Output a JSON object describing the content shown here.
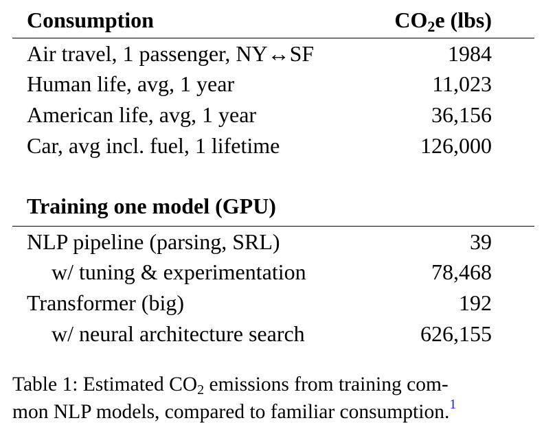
{
  "table": {
    "section1": {
      "header_label": "Consumption",
      "header_value_prefix": "CO",
      "header_value_sub": "2",
      "header_value_suffix": "e (lbs)",
      "rows": [
        {
          "label": "Air travel, 1 passenger, NY↔SF",
          "value": "1984",
          "indent": false
        },
        {
          "label": "Human life, avg, 1 year",
          "value": "11,023",
          "indent": false
        },
        {
          "label": "American life, avg, 1 year",
          "value": "36,156",
          "indent": false
        },
        {
          "label": "Car, avg incl. fuel, 1 lifetime",
          "value": "126,000",
          "indent": false
        }
      ]
    },
    "section2": {
      "header_label": "Training one model (GPU)",
      "rows": [
        {
          "label": "NLP pipeline (parsing, SRL)",
          "value": "39",
          "indent": false
        },
        {
          "label": "w/ tuning & experimentation",
          "value": "78,468",
          "indent": true
        },
        {
          "label": "Transformer (big)",
          "value": "192",
          "indent": false
        },
        {
          "label": "w/ neural architecture search",
          "value": "626,155",
          "indent": true
        }
      ]
    }
  },
  "caption": {
    "line1_prefix": "Table 1: Estimated CO",
    "line1_sub": "2",
    "line1_suffix": " emissions from training com-",
    "line2": "mon NLP models, compared to familiar consumption.",
    "footnote_ref": "1",
    "footnote_color": "#1a2ad6"
  }
}
